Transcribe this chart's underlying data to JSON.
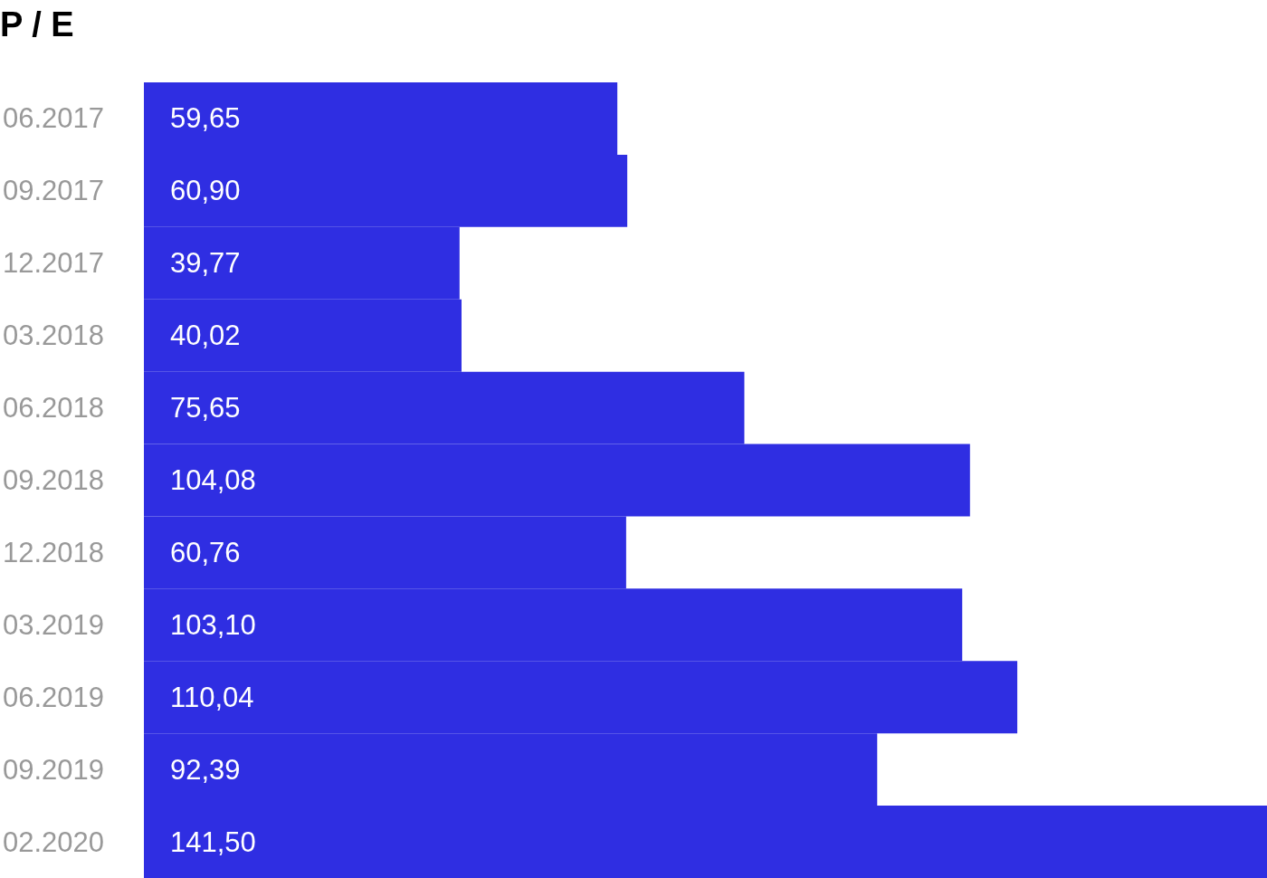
{
  "chart_data": {
    "type": "bar",
    "title": "P / E",
    "orientation": "horizontal",
    "categories": [
      "06.2017",
      "09.2017",
      "12.2017",
      "03.2018",
      "06.2018",
      "09.2018",
      "12.2018",
      "03.2019",
      "06.2019",
      "09.2019",
      "02.2020"
    ],
    "values": [
      59.65,
      60.9,
      39.77,
      40.02,
      75.65,
      104.08,
      60.76,
      103.1,
      110.04,
      92.39,
      141.5
    ],
    "value_labels": [
      "59,65",
      "60,90",
      "39,77",
      "40,02",
      "75,65",
      "104,08",
      "60,76",
      "103,10",
      "110,04",
      "92,39",
      "141,50"
    ],
    "color": "#2f2ee2"
  }
}
